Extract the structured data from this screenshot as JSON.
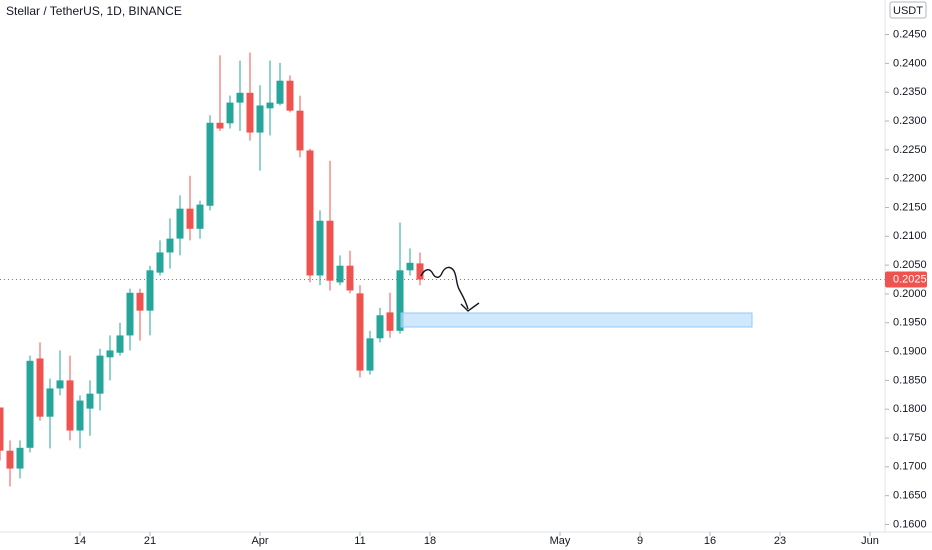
{
  "chart_data": {
    "type": "candlestick",
    "title": "Stellar / TetherUS, 1D, BINANCE",
    "currency": "USDT",
    "up_color": "#26a69a",
    "down_color": "#ef5350",
    "grid": false,
    "x": [
      -8,
      -7,
      -6,
      -5,
      -4,
      -3,
      -2,
      -1,
      0,
      1,
      2,
      3,
      4,
      5,
      6,
      7,
      8,
      9,
      10,
      11,
      12,
      13,
      14,
      15,
      16,
      17,
      18,
      19,
      20,
      21,
      22,
      23,
      24,
      25,
      26,
      27,
      28,
      29,
      30,
      31,
      32,
      33,
      34
    ],
    "open": [
      0.1803,
      0.1728,
      0.1697,
      0.1733,
      0.1888,
      0.1787,
      0.1836,
      0.185,
      0.1763,
      0.1801,
      0.1827,
      0.189,
      0.1898,
      0.1928,
      0.2002,
      0.1971,
      0.2037,
      0.2072,
      0.2096,
      0.2148,
      0.2113,
      0.2153,
      0.2297,
      0.2296,
      0.2332,
      0.2349,
      0.228,
      0.2322,
      0.233,
      0.237,
      0.2318,
      0.2249,
      0.2032,
      0.2127,
      0.202,
      0.2049,
      0.2001,
      0.1867,
      0.1923,
      0.1968,
      0.1936,
      0.2041,
      0.2053
    ],
    "high": [
      0.1803,
      0.1746,
      0.1746,
      0.1893,
      0.1916,
      0.1853,
      0.1902,
      0.1893,
      0.1824,
      0.185,
      0.1905,
      0.1928,
      0.195,
      0.2009,
      0.2009,
      0.2049,
      0.2093,
      0.2131,
      0.2171,
      0.2205,
      0.2162,
      0.231,
      0.2414,
      0.2344,
      0.2405,
      0.2419,
      0.2362,
      0.2405,
      0.2401,
      0.2379,
      0.2344,
      0.2252,
      0.2145,
      0.2231,
      0.2067,
      0.2075,
      0.2015,
      0.1936,
      0.1976,
      0.2002,
      0.2124,
      0.2079,
      0.2072
    ],
    "low": [
      0.1711,
      0.1666,
      0.168,
      0.1725,
      0.178,
      0.1732,
      0.1824,
      0.1746,
      0.1732,
      0.1754,
      0.1798,
      0.185,
      0.1893,
      0.1902,
      0.1919,
      0.1928,
      0.2032,
      0.2044,
      0.2067,
      0.2093,
      0.2096,
      0.2145,
      0.2283,
      0.2287,
      0.2283,
      0.2266,
      0.2214,
      0.2275,
      0.2327,
      0.2315,
      0.2237,
      0.202,
      0.2015,
      0.2006,
      0.2015,
      0.2001,
      0.1855,
      0.186,
      0.1916,
      0.1924,
      0.1931,
      0.2032,
      0.2015
    ],
    "close": [
      0.1728,
      0.1697,
      0.1733,
      0.1884,
      0.1787,
      0.1836,
      0.185,
      0.1763,
      0.1815,
      0.1827,
      0.1893,
      0.1902,
      0.1928,
      0.2002,
      0.1971,
      0.2041,
      0.2072,
      0.2096,
      0.2148,
      0.2113,
      0.2155,
      0.2297,
      0.2287,
      0.2332,
      0.2349,
      0.228,
      0.2327,
      0.2332,
      0.237,
      0.2318,
      0.2249,
      0.2032,
      0.2127,
      0.2023,
      0.2049,
      0.2006,
      0.1867,
      0.1923,
      0.1963,
      0.1936,
      0.2041,
      0.2054,
      0.2025
    ],
    "xlim": [
      -8,
      80.5
    ],
    "xticks": [
      {
        "value": 0,
        "label": "14"
      },
      {
        "value": 7,
        "label": "21"
      },
      {
        "value": 18,
        "label": "Apr"
      },
      {
        "value": 28,
        "label": "11"
      },
      {
        "value": 35,
        "label": "18"
      },
      {
        "value": 48,
        "label": "May"
      },
      {
        "value": 56,
        "label": "9"
      },
      {
        "value": 63,
        "label": "16"
      },
      {
        "value": 70,
        "label": "23"
      },
      {
        "value": 79,
        "label": "Jun"
      }
    ],
    "ylim": [
      0.158,
      0.251
    ],
    "yticks": [
      {
        "value": 0.16,
        "label": "0.1600"
      },
      {
        "value": 0.165,
        "label": "0.1650"
      },
      {
        "value": 0.17,
        "label": "0.1700"
      },
      {
        "value": 0.175,
        "label": "0.1750"
      },
      {
        "value": 0.18,
        "label": "0.1800"
      },
      {
        "value": 0.185,
        "label": "0.1850"
      },
      {
        "value": 0.19,
        "label": "0.1900"
      },
      {
        "value": 0.195,
        "label": "0.1950"
      },
      {
        "value": 0.2,
        "label": "0.2000"
      },
      {
        "value": 0.205,
        "label": "0.2050"
      },
      {
        "value": 0.21,
        "label": "0.2100"
      },
      {
        "value": 0.215,
        "label": "0.2150"
      },
      {
        "value": 0.22,
        "label": "0.2200"
      },
      {
        "value": 0.225,
        "label": "0.2250"
      },
      {
        "value": 0.23,
        "label": "0.2300"
      },
      {
        "value": 0.235,
        "label": "0.2350"
      },
      {
        "value": 0.24,
        "label": "0.2400"
      },
      {
        "value": 0.245,
        "label": "0.2450"
      }
    ]
  }
}
